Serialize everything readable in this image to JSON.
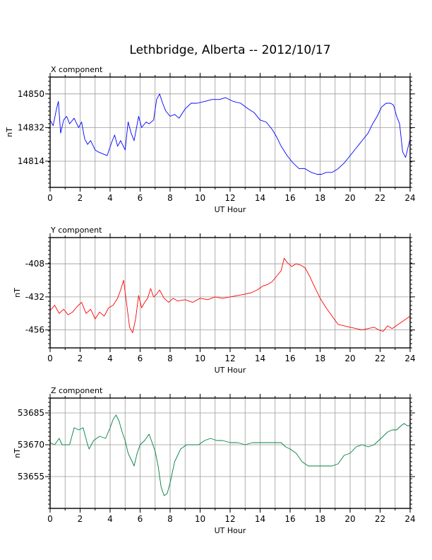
{
  "title": "Lethbridge, Alberta -- 2012/10/17",
  "colors": {
    "x": "#0000ff",
    "y": "#ff0000",
    "z": "#008040",
    "grid": "#9a9a9a"
  },
  "chart_data": [
    {
      "type": "line",
      "panel_label": "X component",
      "xlabel": "UT Hour",
      "ylabel": "nT",
      "xlim": [
        0,
        24
      ],
      "ylim": [
        14800,
        14859
      ],
      "x_ticks": [
        "0",
        "2",
        "4",
        "6",
        "8",
        "10",
        "12",
        "14",
        "16",
        "18",
        "20",
        "22",
        "24"
      ],
      "y_ticks": [
        {
          "value": 14850,
          "label": "14850"
        },
        {
          "value": 14832,
          "label": "14832"
        },
        {
          "value": 14814,
          "label": "14814"
        }
      ],
      "grid": true,
      "color": "#0000ff",
      "series": [
        {
          "x": [
            0,
            0.2,
            0.4,
            0.55,
            0.7,
            0.9,
            1.1,
            1.3,
            1.6,
            1.9,
            2.1,
            2.3,
            2.5,
            2.7,
            3.0,
            3.2,
            3.5,
            3.8,
            4.1,
            4.3,
            4.5,
            4.7,
            5.0,
            5.2,
            5.4,
            5.6,
            5.9,
            6.1,
            6.4,
            6.6,
            6.9,
            7.1,
            7.3,
            7.5,
            7.7,
            8.0,
            8.3,
            8.6,
            9.0,
            9.4,
            9.8,
            10.3,
            10.8,
            11.3,
            11.7,
            12.2,
            12.7,
            13.2,
            13.6,
            14.0,
            14.4,
            14.8,
            15.1,
            15.4,
            15.8,
            16.2,
            16.6,
            17.0,
            17.4,
            17.8,
            18.1,
            18.4,
            18.8,
            19.2,
            19.6,
            20.0,
            20.4,
            20.8,
            21.2,
            21.5,
            21.8,
            22.1,
            22.4,
            22.7,
            22.9,
            23.1,
            23.3,
            23.5,
            23.7,
            24.0
          ],
          "values": [
            14836,
            14833,
            14841,
            14846,
            14829,
            14836,
            14838,
            14834,
            14837,
            14832,
            14835,
            14826,
            14823,
            14825,
            14820,
            14819,
            14818,
            14817,
            14824,
            14828,
            14822,
            14825,
            14820,
            14835,
            14829,
            14825,
            14838,
            14832,
            14835,
            14834,
            14836,
            14847,
            14850,
            14845,
            14841,
            14838,
            14839,
            14837,
            14842,
            14845,
            14845,
            14846,
            14847,
            14847,
            14848,
            14846,
            14845,
            14842,
            14840,
            14836,
            14835,
            14831,
            14827,
            14822,
            14817,
            14813,
            14810,
            14810,
            14808,
            14807,
            14807,
            14808,
            14808,
            14810,
            14813,
            14817,
            14821,
            14825,
            14829,
            14834,
            14838,
            14843,
            14845,
            14845,
            14844,
            14838,
            14834,
            14819,
            14816,
            14826
          ]
        }
      ]
    },
    {
      "type": "line",
      "panel_label": "Y component",
      "xlabel": "UT Hour",
      "ylabel": "nT",
      "xlim": [
        0,
        24
      ],
      "ylim": [
        -469,
        -389
      ],
      "x_ticks": [
        "0",
        "2",
        "4",
        "6",
        "8",
        "10",
        "12",
        "14",
        "16",
        "18",
        "20",
        "22",
        "24"
      ],
      "y_ticks": [
        {
          "value": -408,
          "label": "-408"
        },
        {
          "value": -432,
          "label": "-432"
        },
        {
          "value": -456,
          "label": "-456"
        }
      ],
      "grid": true,
      "color": "#ff0000",
      "series": [
        {
          "x": [
            0,
            0.3,
            0.6,
            0.9,
            1.2,
            1.5,
            1.8,
            2.1,
            2.4,
            2.7,
            3.0,
            3.3,
            3.6,
            3.9,
            4.2,
            4.5,
            4.7,
            4.9,
            5.1,
            5.3,
            5.5,
            5.7,
            5.9,
            6.1,
            6.3,
            6.5,
            6.7,
            6.9,
            7.1,
            7.3,
            7.6,
            7.9,
            8.2,
            8.5,
            9.0,
            9.5,
            10.0,
            10.5,
            11.0,
            11.5,
            12.0,
            12.5,
            13.0,
            13.4,
            13.8,
            14.2,
            14.5,
            14.8,
            15.1,
            15.4,
            15.6,
            15.8,
            16.1,
            16.4,
            16.7,
            17.0,
            17.3,
            17.6,
            18.0,
            18.4,
            18.8,
            19.2,
            19.6,
            20.0,
            20.4,
            20.8,
            21.2,
            21.6,
            21.9,
            22.2,
            22.5,
            22.8,
            23.2,
            23.6,
            24.0
          ],
          "values": [
            -442,
            -438,
            -444,
            -441,
            -445,
            -443,
            -439,
            -436,
            -444,
            -441,
            -448,
            -443,
            -446,
            -440,
            -438,
            -433,
            -427,
            -420,
            -437,
            -454,
            -458,
            -448,
            -431,
            -440,
            -436,
            -433,
            -426,
            -432,
            -430,
            -427,
            -433,
            -436,
            -433,
            -435,
            -434,
            -436,
            -433,
            -434,
            -432,
            -433,
            -432,
            -431,
            -430,
            -429,
            -427,
            -424,
            -423,
            -421,
            -417,
            -413,
            -404,
            -407,
            -410,
            -408,
            -409,
            -411,
            -417,
            -424,
            -433,
            -440,
            -446,
            -452,
            -453,
            -454,
            -455,
            -456,
            -455,
            -454,
            -456,
            -457,
            -453,
            -455,
            -452,
            -449,
            -446
          ]
        }
      ]
    },
    {
      "type": "line",
      "panel_label": "Z component",
      "xlabel": "UT Hour",
      "ylabel": "nT",
      "xlim": [
        0,
        24
      ],
      "ylim": [
        53640,
        53692
      ],
      "x_ticks": [
        "0",
        "2",
        "4",
        "6",
        "8",
        "10",
        "12",
        "14",
        "16",
        "18",
        "20",
        "22",
        "24"
      ],
      "y_ticks": [
        {
          "value": 53685,
          "label": "53685"
        },
        {
          "value": 53670,
          "label": "53670"
        },
        {
          "value": 53655,
          "label": "53655"
        }
      ],
      "grid": true,
      "color": "#008040",
      "series": [
        {
          "x": [
            0,
            0.3,
            0.6,
            0.8,
            1.0,
            1.3,
            1.6,
            1.9,
            2.2,
            2.5,
            2.6,
            2.9,
            3.3,
            3.7,
            4.0,
            4.2,
            4.4,
            4.6,
            4.8,
            5.0,
            5.2,
            5.4,
            5.6,
            5.8,
            6.0,
            6.3,
            6.6,
            6.8,
            7.0,
            7.2,
            7.4,
            7.6,
            7.8,
            8.0,
            8.3,
            8.7,
            9.1,
            9.5,
            9.9,
            10.3,
            10.7,
            11.1,
            11.5,
            12.0,
            12.5,
            13.0,
            13.5,
            14.0,
            14.5,
            15.0,
            15.4,
            15.7,
            16.0,
            16.4,
            16.8,
            17.2,
            17.6,
            18.0,
            18.4,
            18.8,
            19.2,
            19.6,
            20.0,
            20.4,
            20.8,
            21.2,
            21.6,
            21.9,
            22.2,
            22.5,
            22.8,
            23.1,
            23.4,
            23.6,
            23.8,
            24.0
          ],
          "values": [
            53671,
            53670,
            53673,
            53670,
            53670,
            53670,
            53678,
            53677,
            53678,
            53670,
            53668,
            53672,
            53674,
            53673,
            53678,
            53682,
            53684,
            53681,
            53676,
            53672,
            53666,
            53663,
            53660,
            53666,
            53670,
            53672,
            53675,
            53671,
            53667,
            53660,
            53650,
            53646,
            53647,
            53652,
            53662,
            53668,
            53670,
            53670,
            53670,
            53672,
            53673,
            53672,
            53672,
            53671,
            53671,
            53670,
            53671,
            53671,
            53671,
            53671,
            53671,
            53669,
            53668,
            53666,
            53662,
            53660,
            53660,
            53660,
            53660,
            53660,
            53661,
            53665,
            53666,
            53669,
            53670,
            53669,
            53670,
            53672,
            53674,
            53676,
            53677,
            53677,
            53679,
            53680,
            53679,
            53679
          ]
        }
      ]
    }
  ]
}
